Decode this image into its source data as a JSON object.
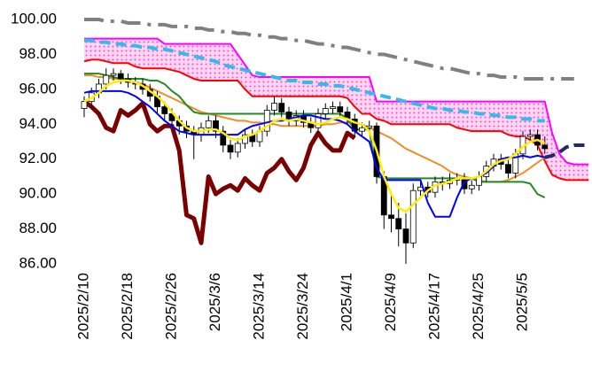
{
  "chart_data": {
    "type": "candlestick",
    "categories": [
      "2025/2/10",
      null,
      null,
      null,
      null,
      null,
      "2025/2/18",
      null,
      null,
      null,
      null,
      null,
      "2025/2/26",
      null,
      null,
      null,
      null,
      null,
      "2025/3/6",
      null,
      null,
      null,
      null,
      null,
      "2025/3/14",
      null,
      null,
      null,
      null,
      null,
      "2025/3/24",
      null,
      null,
      null,
      null,
      null,
      "2025/4/1",
      null,
      null,
      null,
      null,
      null,
      "2025/4/9",
      null,
      null,
      null,
      null,
      null,
      "2025/4/17",
      null,
      null,
      null,
      null,
      null,
      "2025/4/25",
      null,
      null,
      null,
      null,
      null,
      "2025/5/5",
      null,
      null,
      null,
      null,
      null,
      null,
      null,
      null,
      null
    ],
    "ylim": [
      86,
      100
    ],
    "yticks": [
      {
        "value": 86,
        "label": "86.00"
      },
      {
        "value": 88,
        "label": "88.00"
      },
      {
        "value": 90,
        "label": "90.00"
      },
      {
        "value": 92,
        "label": "92.00"
      },
      {
        "value": 94,
        "label": "94.00"
      },
      {
        "value": 96,
        "label": "96.00"
      },
      {
        "value": 98,
        "label": "98.00"
      },
      {
        "value": 100,
        "label": "100.00"
      }
    ],
    "grid": false,
    "up_color": "#ffffff",
    "down_color": "#000000",
    "cloud_color": "#ff44cc",
    "candles": {
      "open": [
        94.9,
        95.3,
        95.8,
        96.3,
        96.8,
        96.9,
        96.6,
        96.4,
        96.3,
        96.0,
        95.6,
        95.0,
        94.6,
        94.2,
        93.9,
        93.6,
        93.4,
        93.8,
        94.2,
        93.6,
        92.8,
        92.4,
        92.9,
        93.4,
        93.0,
        93.6,
        94.8,
        95.2,
        94.7,
        94.2,
        94.5,
        94.1,
        93.8,
        94.6,
        94.9,
        95.0,
        94.7,
        94.3,
        93.6,
        93.8,
        93.9,
        91.0,
        88.8,
        88.6,
        88.0,
        87.2,
        90.2,
        90.4,
        90.1,
        90.7,
        90.6,
        90.8,
        90.9,
        90.3,
        90.5,
        91.0,
        91.6,
        92.0,
        91.7,
        91.2,
        92.3,
        93.3,
        93.4,
        92.8
      ],
      "high": [
        95.6,
        96.1,
        96.6,
        97.2,
        97.2,
        97.1,
        96.9,
        96.7,
        96.6,
        96.3,
        95.9,
        95.3,
        94.9,
        94.5,
        94.2,
        93.9,
        94.1,
        94.5,
        94.5,
        93.9,
        93.1,
        93.2,
        93.7,
        93.7,
        93.9,
        95.1,
        95.6,
        95.5,
        95.0,
        94.8,
        94.8,
        94.4,
        94.9,
        95.2,
        95.3,
        95.3,
        95.0,
        94.6,
        94.1,
        94.2,
        94.1,
        91.3,
        90.0,
        89.5,
        88.9,
        90.6,
        90.8,
        90.7,
        91.0,
        91.0,
        91.2,
        91.2,
        91.2,
        90.8,
        91.3,
        91.9,
        92.3,
        92.3,
        92.0,
        92.6,
        93.6,
        93.7,
        93.7,
        93.3
      ],
      "low": [
        94.4,
        95.0,
        95.5,
        96.0,
        96.5,
        96.3,
        96.1,
        96.0,
        95.7,
        95.3,
        94.6,
        94.2,
        93.9,
        93.4,
        93.2,
        92.0,
        93.0,
        93.5,
        93.2,
        92.4,
        92.0,
        92.1,
        92.6,
        92.7,
        92.7,
        93.3,
        94.5,
        94.4,
        93.9,
        93.9,
        93.8,
        93.5,
        93.5,
        94.3,
        94.6,
        94.4,
        94.0,
        93.3,
        93.3,
        93.5,
        90.6,
        88.0,
        87.8,
        87.0,
        86.0,
        86.9,
        89.9,
        89.8,
        89.8,
        90.2,
        90.3,
        90.5,
        90.0,
        90.0,
        90.2,
        90.7,
        91.3,
        91.4,
        90.9,
        90.9,
        92.0,
        93.0,
        92.5,
        92.3
      ],
      "close": [
        95.3,
        95.8,
        96.3,
        96.8,
        96.9,
        96.6,
        96.4,
        96.3,
        96.0,
        95.6,
        95.0,
        94.6,
        94.2,
        93.9,
        93.6,
        93.4,
        93.8,
        94.2,
        93.6,
        92.8,
        92.4,
        92.9,
        93.4,
        93.0,
        93.6,
        94.8,
        95.2,
        94.7,
        94.2,
        94.5,
        94.1,
        93.8,
        94.6,
        94.9,
        95.0,
        94.7,
        94.3,
        93.6,
        93.8,
        93.9,
        91.0,
        88.8,
        88.6,
        88.0,
        87.2,
        90.2,
        90.4,
        90.1,
        90.7,
        90.6,
        90.8,
        90.9,
        90.3,
        90.5,
        91.0,
        91.6,
        92.0,
        91.7,
        91.2,
        92.3,
        93.3,
        93.4,
        92.8,
        92.6
      ]
    },
    "series": [
      {
        "color": "#808080",
        "style": "dashdot",
        "width": 4,
        "values": [
          100.0,
          100.0,
          100.0,
          99.9,
          99.9,
          99.9,
          99.8,
          99.8,
          99.8,
          99.7,
          99.7,
          99.7,
          99.6,
          99.6,
          99.6,
          99.5,
          99.5,
          99.4,
          99.4,
          99.3,
          99.3,
          99.2,
          99.2,
          99.1,
          99.1,
          99.0,
          99.0,
          98.9,
          98.9,
          98.8,
          98.8,
          98.7,
          98.6,
          98.6,
          98.5,
          98.4,
          98.4,
          98.3,
          98.2,
          98.1,
          98.0,
          98.0,
          97.9,
          97.8,
          97.7,
          97.6,
          97.5,
          97.4,
          97.3,
          97.2,
          97.2,
          97.1,
          97.0,
          96.9,
          96.9,
          96.8,
          96.8,
          96.7,
          96.7,
          96.7,
          96.6,
          96.6,
          96.6,
          96.6,
          96.6,
          96.6,
          96.6,
          96.6,
          null,
          null
        ]
      },
      {
        "color": "#ff00ff",
        "style": "solid",
        "width": 2,
        "cloud": "upper",
        "values": [
          98.9,
          98.9,
          98.9,
          98.9,
          98.9,
          98.9,
          98.9,
          98.9,
          98.9,
          98.9,
          98.9,
          98.6,
          98.6,
          98.6,
          98.6,
          98.6,
          98.6,
          98.6,
          98.6,
          98.6,
          98.6,
          98.0,
          97.4,
          96.8,
          96.7,
          96.7,
          96.7,
          96.7,
          96.7,
          96.7,
          96.7,
          96.7,
          96.7,
          96.7,
          96.7,
          96.7,
          96.7,
          96.7,
          96.7,
          96.7,
          95.3,
          95.3,
          95.3,
          95.3,
          95.3,
          95.3,
          95.3,
          95.3,
          95.3,
          95.3,
          95.3,
          95.3,
          95.3,
          95.3,
          95.3,
          95.3,
          95.3,
          95.3,
          95.3,
          95.3,
          95.3,
          95.3,
          95.3,
          95.3,
          93.5,
          92.3,
          91.8,
          91.7,
          91.7,
          91.7
        ]
      },
      {
        "color": "#ff0000",
        "style": "solid",
        "width": 2,
        "cloud": "lower",
        "values": [
          97.6,
          97.7,
          97.7,
          97.6,
          97.5,
          97.5,
          97.5,
          97.3,
          97.2,
          97.2,
          97.2,
          97.2,
          97.1,
          97.0,
          96.8,
          96.6,
          96.5,
          96.5,
          96.5,
          96.5,
          96.5,
          96.5,
          96.0,
          95.6,
          95.6,
          95.6,
          95.6,
          95.6,
          95.6,
          95.6,
          95.6,
          95.6,
          95.6,
          95.6,
          95.6,
          95.6,
          95.5,
          95.0,
          94.6,
          94.6,
          94.3,
          94.2,
          94.0,
          94.0,
          94.0,
          94.0,
          94.0,
          94.0,
          94.0,
          94.0,
          94.0,
          93.8,
          93.7,
          93.6,
          93.6,
          93.6,
          93.6,
          93.6,
          93.4,
          93.3,
          93.3,
          93.1,
          92.8,
          91.9,
          91.1,
          90.9,
          90.8,
          90.8,
          90.8,
          90.8
        ]
      },
      {
        "color": "#33bbee",
        "style": "dashed",
        "width": 4,
        "values": [
          98.8,
          98.8,
          98.7,
          98.7,
          98.6,
          98.6,
          98.5,
          98.5,
          98.4,
          98.4,
          98.3,
          98.3,
          98.2,
          98.1,
          98.0,
          97.9,
          97.8,
          97.7,
          97.6,
          97.4,
          97.3,
          97.2,
          97.1,
          97.0,
          96.9,
          96.8,
          96.7,
          96.6,
          96.5,
          96.5,
          96.4,
          96.4,
          96.3,
          96.3,
          96.2,
          96.2,
          96.1,
          96.0,
          95.9,
          95.8,
          95.7,
          95.6,
          95.5,
          95.4,
          95.3,
          95.2,
          95.1,
          95.0,
          94.9,
          94.9,
          94.8,
          94.8,
          94.7,
          94.7,
          94.6,
          94.6,
          94.5,
          94.5,
          94.4,
          94.4,
          94.3,
          94.3,
          94.2,
          94.2,
          null,
          null,
          null,
          null,
          null,
          null
        ]
      },
      {
        "color": "#f28c28",
        "style": "solid",
        "width": 2,
        "values": [
          96.8,
          96.8,
          96.7,
          96.7,
          96.6,
          96.6,
          96.5,
          96.4,
          96.3,
          96.1,
          95.9,
          95.7,
          95.5,
          95.3,
          95.1,
          94.9,
          94.7,
          94.6,
          94.5,
          94.4,
          94.3,
          94.2,
          94.2,
          94.1,
          94.1,
          94.0,
          94.0,
          93.9,
          93.9,
          93.9,
          93.9,
          93.9,
          93.9,
          94.0,
          94.0,
          94.1,
          94.1,
          94.1,
          94.0,
          93.8,
          93.6,
          93.4,
          93.2,
          92.9,
          92.6,
          92.4,
          92.2,
          92.0,
          91.8,
          91.6,
          91.3,
          91.1,
          91.0,
          90.9,
          90.8,
          90.7,
          90.7,
          90.7,
          90.8,
          91.0,
          91.2,
          91.5,
          91.8,
          92.1,
          null,
          null,
          null,
          null,
          null,
          null
        ]
      },
      {
        "color": "#228b22",
        "style": "solid",
        "width": 2,
        "values": [
          96.9,
          96.9,
          96.9,
          96.8,
          96.7,
          96.6,
          96.6,
          96.6,
          96.6,
          96.5,
          96.5,
          96.3,
          95.9,
          95.6,
          95.1,
          94.7,
          94.6,
          94.6,
          94.6,
          94.6,
          94.6,
          94.6,
          94.6,
          94.6,
          94.6,
          94.6,
          94.6,
          94.6,
          94.6,
          94.6,
          94.6,
          94.6,
          94.6,
          94.6,
          94.6,
          94.6,
          94.3,
          93.7,
          93.7,
          93.7,
          91.0,
          90.9,
          90.9,
          90.9,
          90.9,
          90.9,
          90.9,
          90.9,
          90.9,
          90.9,
          90.9,
          90.9,
          90.9,
          90.9,
          90.7,
          90.7,
          90.7,
          90.7,
          90.7,
          90.7,
          90.7,
          90.6,
          90.0,
          89.8,
          null,
          null,
          null,
          null,
          null,
          null
        ]
      },
      {
        "color": "#7b0000",
        "style": "solid",
        "width": 5,
        "values": [
          95.3,
          95.0,
          94.6,
          93.8,
          93.6,
          94.8,
          94.5,
          94.8,
          95.2,
          94.0,
          93.6,
          93.9,
          93.9,
          92.5,
          88.8,
          88.6,
          87.2,
          91.0,
          90.0,
          90.3,
          90.5,
          90.2,
          90.9,
          90.5,
          90.2,
          91.2,
          91.5,
          92.0,
          91.3,
          90.8,
          91.5,
          92.8,
          93.5,
          92.9,
          92.5,
          92.5,
          93.5,
          93.2,
          null,
          null,
          null,
          null,
          null,
          null,
          null,
          null,
          null,
          null,
          null,
          null,
          null,
          null,
          null,
          null,
          null,
          null,
          null,
          null,
          null,
          null,
          null,
          null,
          null,
          null,
          null,
          null,
          null,
          null,
          null,
          null
        ]
      },
      {
        "color": "#0000ff",
        "style": "solid",
        "width": 2,
        "values": [
          95.8,
          95.9,
          95.9,
          95.9,
          95.9,
          95.9,
          95.8,
          95.6,
          95.3,
          95.0,
          94.6,
          94.2,
          93.9,
          93.6,
          93.5,
          93.4,
          93.4,
          93.4,
          93.4,
          93.4,
          93.4,
          93.4,
          93.7,
          93.9,
          94.0,
          94.1,
          94.2,
          94.2,
          94.3,
          94.4,
          94.5,
          94.5,
          94.4,
          94.3,
          94.3,
          94.2,
          94.0,
          93.6,
          93.3,
          93.0,
          91.5,
          90.8,
          90.8,
          90.8,
          90.8,
          90.8,
          90.8,
          89.5,
          88.7,
          88.7,
          88.7,
          89.8,
          90.7,
          90.9,
          91.0,
          91.2,
          91.6,
          92.0,
          92.1,
          92.1,
          92.2,
          92.1,
          92.2,
          92.1,
          null,
          null,
          null,
          null,
          null,
          null
        ]
      },
      {
        "color": "#ffee00",
        "style": "solid",
        "width": 2.5,
        "values": [
          95.3,
          95.5,
          95.8,
          96.2,
          96.4,
          96.5,
          96.5,
          96.4,
          96.2,
          95.9,
          95.6,
          95.2,
          94.7,
          94.2,
          93.8,
          93.6,
          93.6,
          93.7,
          93.7,
          93.5,
          93.2,
          93.1,
          93.3,
          93.4,
          93.6,
          93.9,
          94.2,
          94.3,
          94.2,
          94.3,
          94.2,
          94.1,
          94.0,
          94.1,
          94.3,
          94.4,
          94.3,
          94.1,
          94.0,
          93.6,
          92.5,
          91.0,
          90.0,
          89.2,
          89.0,
          89.4,
          89.8,
          90.2,
          90.5,
          90.6,
          90.7,
          90.9,
          90.9,
          90.9,
          91.0,
          91.3,
          91.7,
          91.9,
          92.0,
          92.3,
          92.7,
          93.0,
          93.1,
          92.9,
          null,
          null,
          null,
          null,
          null,
          null
        ]
      },
      {
        "color": "#1f2a6b",
        "style": "dashed",
        "width": 4,
        "values": [
          null,
          null,
          null,
          null,
          null,
          null,
          null,
          null,
          null,
          null,
          null,
          null,
          null,
          null,
          null,
          null,
          null,
          null,
          null,
          null,
          null,
          null,
          null,
          null,
          null,
          null,
          null,
          null,
          null,
          null,
          null,
          null,
          null,
          null,
          null,
          null,
          null,
          null,
          null,
          null,
          null,
          null,
          null,
          null,
          null,
          null,
          null,
          null,
          null,
          null,
          null,
          null,
          null,
          null,
          null,
          null,
          null,
          null,
          null,
          null,
          null,
          null,
          null,
          92.1,
          92.2,
          92.4,
          92.7,
          92.8,
          92.8,
          92.8
        ]
      }
    ]
  }
}
